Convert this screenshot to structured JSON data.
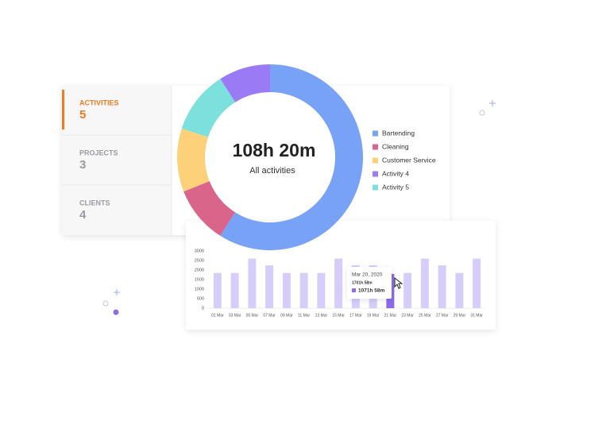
{
  "tabs": [
    {
      "label": "ACTIVITIES",
      "count": "5"
    },
    {
      "label": "PROJECTS",
      "count": "3"
    },
    {
      "label": "CLIENTS",
      "count": "4"
    }
  ],
  "chart_data": [
    {
      "type": "pie",
      "center_label": "108h 20m",
      "center_sublabel": "All activities",
      "categories": [
        "Bartending",
        "Cleaning",
        "Customer Service",
        "Activity 4",
        "Activity 5"
      ],
      "values": [
        59,
        10,
        11,
        9,
        11
      ],
      "colors": [
        "#78a2f5",
        "#d9658a",
        "#fdd179",
        "#9b7bf5",
        "#7ce0dc"
      ],
      "order": [
        0,
        1,
        2,
        4,
        3
      ]
    },
    {
      "type": "bar",
      "categories": [
        "01 Mar",
        "03 Mar",
        "05 Mar",
        "07 Mar",
        "09 Mar",
        "11 Mar",
        "13 Mar",
        "15 Mar",
        "17 Mar",
        "19 Mar",
        "21 Mar",
        "23 Mar",
        "25 Mar",
        "27 Mar",
        "29 Mar",
        "31 Mar"
      ],
      "values": [
        1850,
        1850,
        2600,
        2250,
        1850,
        1850,
        1850,
        2600,
        2250,
        2250,
        1800,
        1850,
        2600,
        2250,
        1850,
        2600
      ],
      "colors": [
        "#d6cdfa",
        "#d6cdfa",
        "#d6cdfa",
        "#d6cdfa",
        "#d6cdfa",
        "#d6cdfa",
        "#d6cdfa",
        "#d6cdfa",
        "#d6cdfa",
        "#d6cdfa",
        "#8b6be8",
        "#d6cdfa",
        "#d6cdfa",
        "#d6cdfa",
        "#d6cdfa",
        "#d6cdfa"
      ],
      "ylim": [
        0,
        3000
      ],
      "yticks": [
        0,
        500,
        1000,
        1500,
        2000,
        2500,
        3000
      ],
      "tooltip": {
        "date": "Mar 20, 2020",
        "total": "1701h 58m",
        "value": "1071h 58m"
      }
    }
  ]
}
